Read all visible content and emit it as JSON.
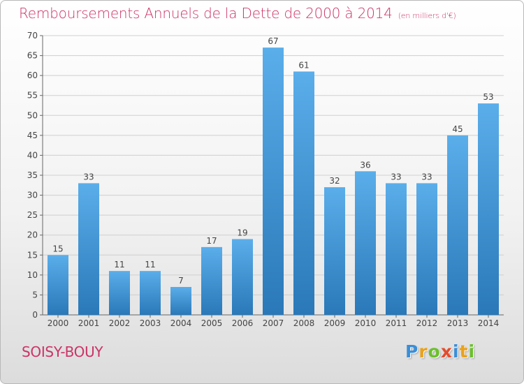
{
  "header": {
    "title": "Remboursements Annuels de la Dette de 2000 à 2014",
    "unit": "(en milliers d'€)"
  },
  "footer": {
    "commune": "SOISY-BOUY",
    "logo": "Proxiti"
  },
  "colors": {
    "title": "#cc3366",
    "bar_top": "#5aaeea",
    "bar_bottom": "#2a78b8",
    "grid": "#cfcfcf"
  },
  "chart_data": {
    "type": "bar",
    "title": "Remboursements Annuels de la Dette de 2000 à 2014",
    "subtitle": "(en milliers d'€)",
    "xlabel": "",
    "ylabel": "",
    "categories": [
      "2000",
      "2001",
      "2002",
      "2003",
      "2004",
      "2005",
      "2006",
      "2007",
      "2008",
      "2009",
      "2010",
      "2011",
      "2012",
      "2013",
      "2014"
    ],
    "values": [
      15,
      33,
      11,
      11,
      7,
      17,
      19,
      67,
      61,
      32,
      36,
      33,
      33,
      45,
      53
    ],
    "ylim": [
      0,
      70
    ],
    "yticks": [
      0,
      5,
      10,
      15,
      20,
      25,
      30,
      35,
      40,
      45,
      50,
      55,
      60,
      65,
      70
    ],
    "grid": true,
    "data_labels": true
  }
}
